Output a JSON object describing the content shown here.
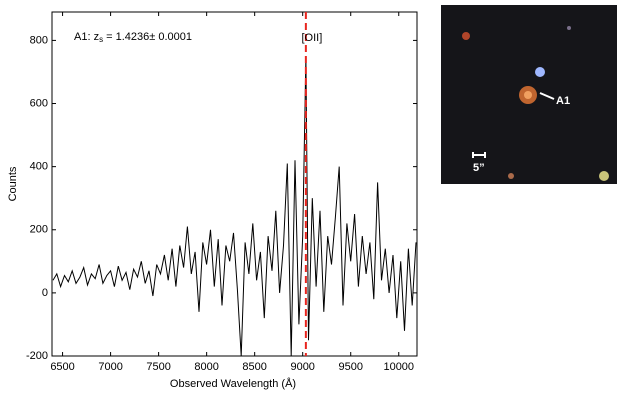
{
  "chart_data": {
    "type": "line",
    "annotation": {
      "prefix": "A1: z",
      "subscript": "s",
      "suffix": " = 1.4236±  0.0001"
    },
    "xlabel": "Observed Wavelength (Å)",
    "ylabel": "Counts",
    "xlim": [
      6390,
      10190
    ],
    "ylim": [
      -200,
      890
    ],
    "xticks": [
      6500,
      7000,
      7500,
      8000,
      8500,
      9000,
      9500,
      10000
    ],
    "yticks": [
      -200,
      0,
      200,
      400,
      600,
      800
    ],
    "reference_line": {
      "x": 9033,
      "label": "[OII]",
      "color": "#e8251f"
    },
    "series": [
      {
        "color": "#000000",
        "x": [
          6400,
          6440,
          6480,
          6520,
          6560,
          6600,
          6640,
          6680,
          6720,
          6760,
          6800,
          6840,
          6880,
          6920,
          6960,
          7000,
          7040,
          7080,
          7120,
          7160,
          7200,
          7240,
          7280,
          7320,
          7360,
          7400,
          7440,
          7480,
          7520,
          7560,
          7600,
          7640,
          7680,
          7720,
          7760,
          7800,
          7840,
          7880,
          7920,
          7960,
          8000,
          8040,
          8080,
          8120,
          8160,
          8200,
          8240,
          8280,
          8320,
          8360,
          8400,
          8440,
          8480,
          8520,
          8560,
          8600,
          8640,
          8680,
          8720,
          8760,
          8800,
          8840,
          8880,
          8920,
          8960,
          9000,
          9033,
          9060,
          9100,
          9140,
          9180,
          9220,
          9260,
          9300,
          9340,
          9380,
          9420,
          9460,
          9500,
          9540,
          9580,
          9620,
          9660,
          9700,
          9740,
          9780,
          9820,
          9860,
          9900,
          9940,
          9980,
          10020,
          10060,
          10100,
          10140,
          10180
        ],
        "values": [
          40,
          60,
          20,
          55,
          35,
          70,
          30,
          50,
          80,
          25,
          60,
          45,
          90,
          30,
          55,
          70,
          20,
          85,
          40,
          65,
          10,
          75,
          50,
          100,
          30,
          70,
          -10,
          90,
          60,
          120,
          40,
          140,
          20,
          150,
          80,
          210,
          60,
          130,
          -60,
          160,
          90,
          200,
          20,
          170,
          -40,
          150,
          100,
          190,
          10,
          -200,
          160,
          60,
          220,
          40,
          130,
          -80,
          180,
          70,
          260,
          0,
          150,
          410,
          -200,
          420,
          -100,
          180,
          750,
          -150,
          300,
          20,
          260,
          -60,
          180,
          90,
          240,
          400,
          -40,
          220,
          100,
          250,
          20,
          180,
          60,
          160,
          -20,
          350,
          40,
          140,
          0,
          120,
          -80,
          100,
          -120,
          140,
          -40,
          160
        ]
      }
    ]
  },
  "image": {
    "object_label": "A1",
    "scale_label": "5”"
  }
}
